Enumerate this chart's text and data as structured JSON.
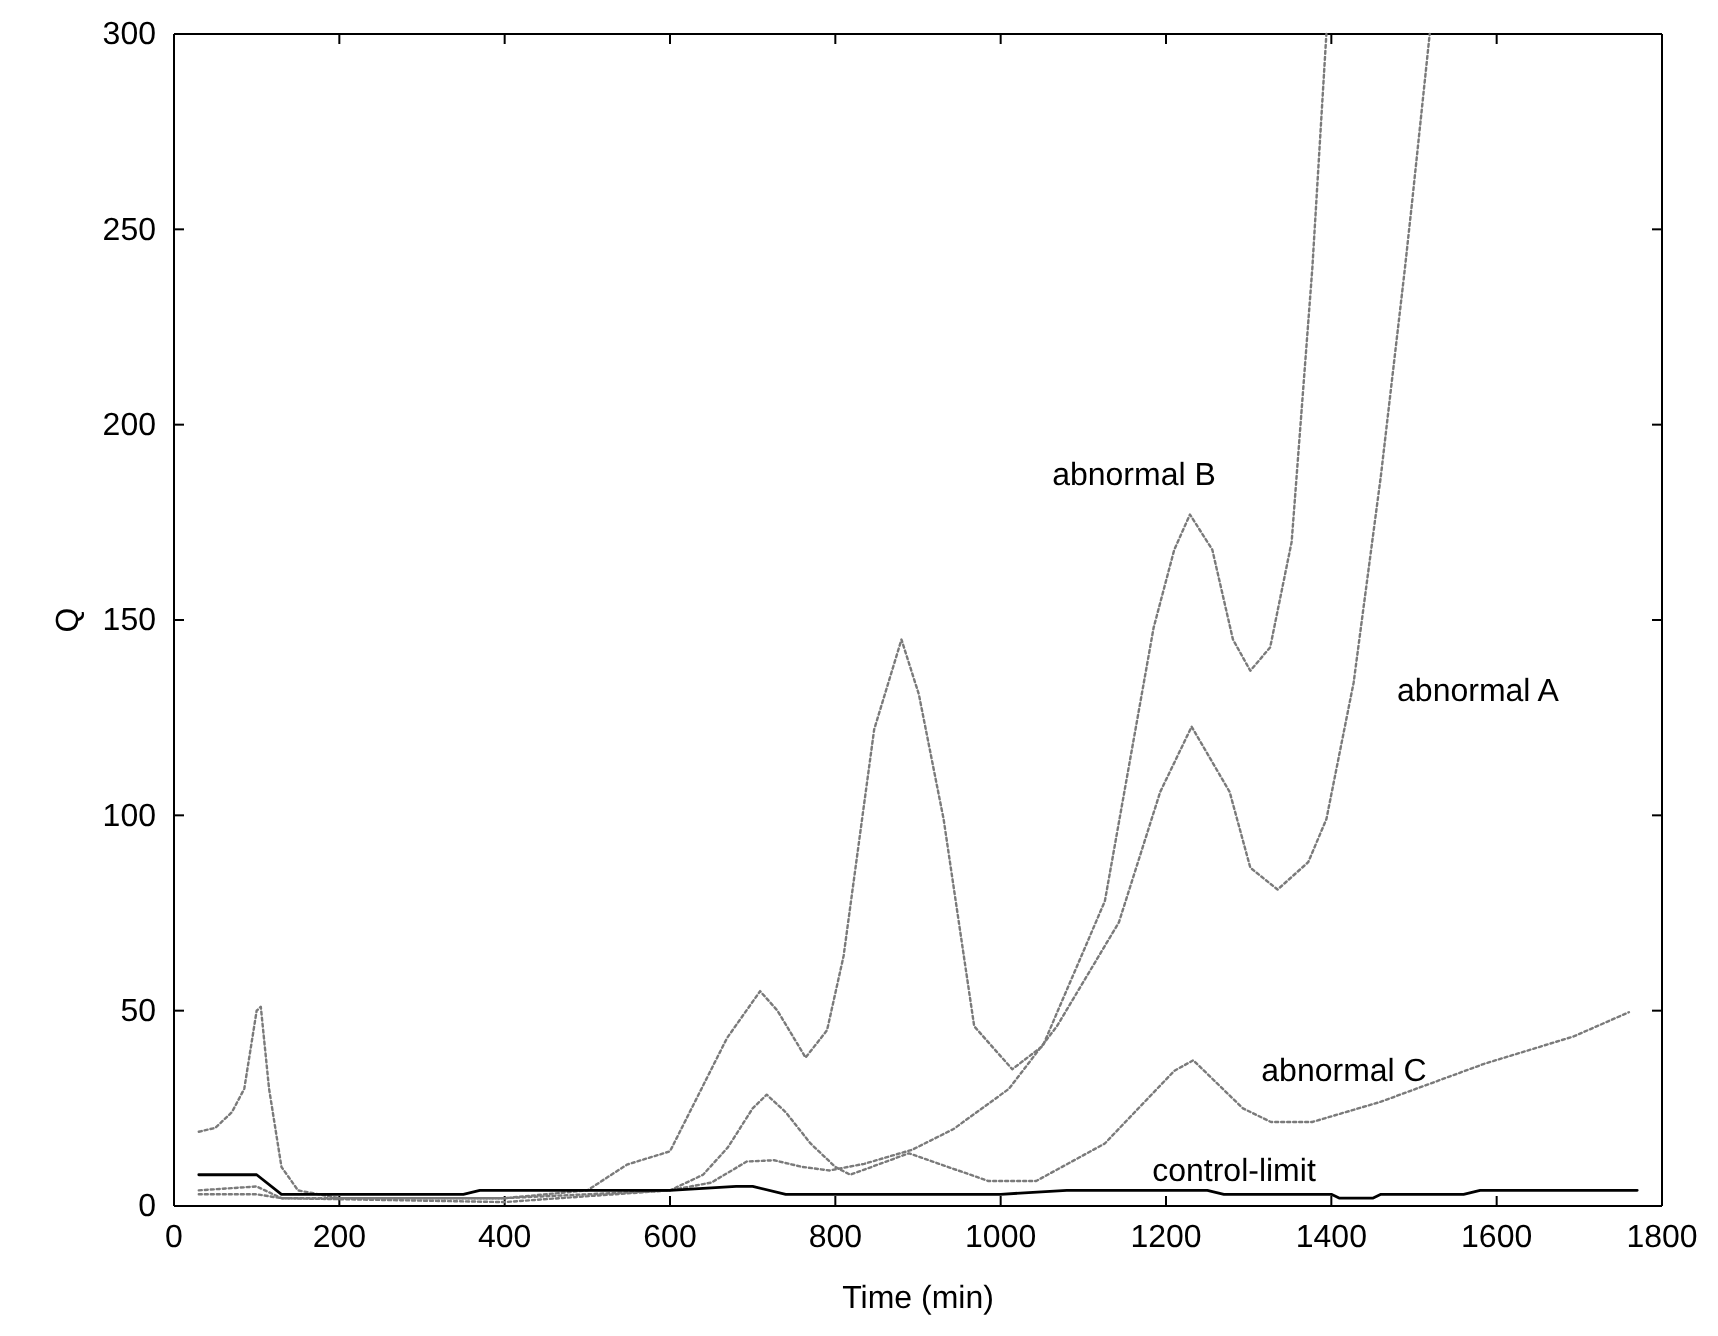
{
  "chart_data": {
    "type": "line",
    "xlabel": "Time (min)",
    "ylabel": "Q",
    "xlim": [
      0,
      1800
    ],
    "ylim": [
      0,
      300
    ],
    "xticks": [
      0,
      200,
      400,
      600,
      800,
      1000,
      1200,
      1400,
      1600,
      1800
    ],
    "yticks": [
      0,
      50,
      100,
      150,
      200,
      250,
      300
    ],
    "grid": false,
    "marker": "none",
    "series": [
      {
        "name": "abnormal B",
        "color": "#7a7a7a",
        "line_style": "dotted",
        "x": [
          30,
          50,
          70,
          85,
          100,
          105,
          115,
          130,
          150,
          200,
          300,
          400,
          500,
          548,
          600,
          669,
          709,
          730,
          764,
          790,
          810,
          847,
          880,
          901,
          931,
          968,
          1014,
          1051,
          1126,
          1185,
          1210,
          1229,
          1256,
          1281,
          1302,
          1326,
          1352,
          1377,
          1394
        ],
        "values": [
          19,
          20,
          24,
          30,
          50,
          51,
          30,
          10,
          4,
          2,
          2,
          2,
          4,
          10.6,
          14,
          43,
          55,
          50,
          38,
          45,
          64,
          122,
          145,
          131,
          99,
          46,
          35,
          41,
          78,
          148,
          168,
          177,
          168,
          145,
          137,
          143,
          170,
          240,
          300
        ]
      },
      {
        "name": "abnormal A",
        "color": "#7a7a7a",
        "line_style": "dotted",
        "x": [
          30,
          100,
          130,
          400,
          500,
          600,
          650,
          693,
          726,
          760,
          793,
          835,
          893,
          943,
          1010,
          1068,
          1143,
          1193,
          1231,
          1277,
          1302,
          1335,
          1372,
          1394,
          1427,
          1460,
          1489,
          1498,
          1519
        ],
        "values": [
          3,
          3,
          2,
          2,
          3,
          4,
          6,
          11.4,
          11.7,
          10,
          9.1,
          10.8,
          14.4,
          19.7,
          30,
          46,
          72.6,
          106,
          122.7,
          106,
          86.6,
          81,
          88,
          99,
          134,
          187,
          240,
          257.6,
          300
        ]
      },
      {
        "name": "abnormal C",
        "color": "#7a7a7a",
        "line_style": "dotted",
        "x": [
          30,
          100,
          130,
          400,
          600,
          640,
          670,
          700,
          717,
          740,
          770,
          800,
          818,
          889,
          985,
          1043,
          1126,
          1210,
          1233,
          1293,
          1327,
          1377,
          1460,
          1585,
          1693,
          1760
        ],
        "values": [
          4,
          5,
          2,
          1,
          4,
          8,
          15,
          25,
          28.5,
          24,
          16,
          10,
          8,
          13.5,
          6.4,
          6.4,
          16,
          34.6,
          37.3,
          25,
          21.5,
          21.5,
          26.7,
          36.4,
          43.4,
          49.6
        ]
      },
      {
        "name": "control-limit",
        "color": "#000000",
        "line_style": "solid",
        "x": [
          30,
          100,
          130,
          200,
          350,
          370,
          600,
          680,
          700,
          740,
          1000,
          1080,
          1250,
          1270,
          1400,
          1410,
          1450,
          1460,
          1560,
          1580,
          1770
        ],
        "values": [
          8,
          8,
          3,
          3,
          3,
          4,
          4,
          5,
          5,
          3,
          3,
          4,
          4,
          3,
          3,
          2,
          2,
          3,
          3,
          4,
          4
        ]
      }
    ],
    "legend": false
  }
}
